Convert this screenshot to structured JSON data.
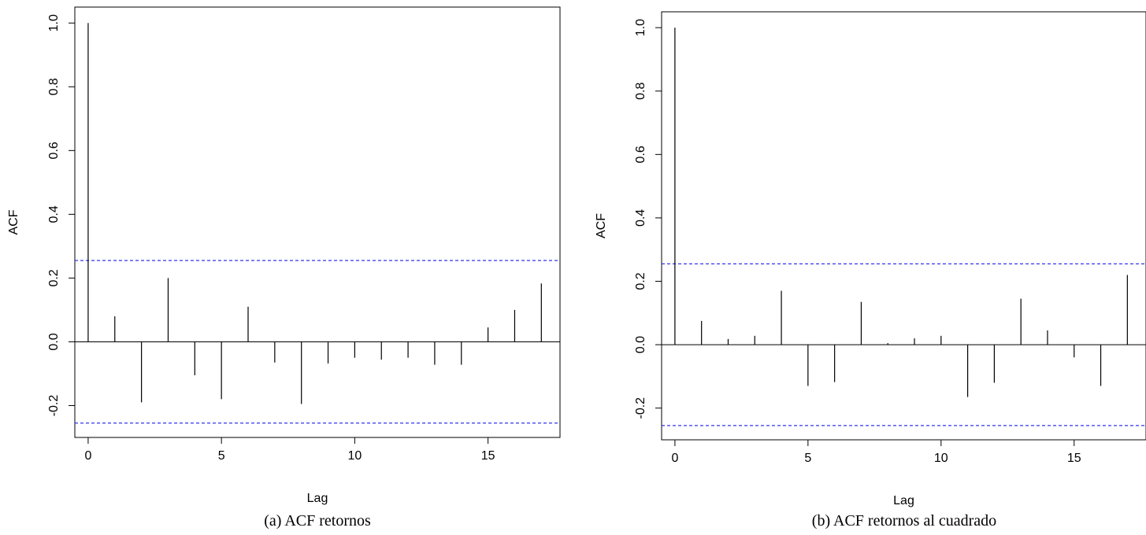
{
  "chart_data": [
    {
      "type": "bar",
      "caption": "(a) ACF retornos",
      "xlabel": "Lag",
      "ylabel": "ACF",
      "x": [
        0,
        1,
        2,
        3,
        4,
        5,
        6,
        7,
        8,
        9,
        10,
        11,
        12,
        13,
        14,
        15,
        16,
        17
      ],
      "values": [
        1.0,
        0.08,
        -0.19,
        0.2,
        -0.105,
        -0.18,
        0.11,
        -0.065,
        -0.195,
        -0.068,
        -0.05,
        -0.056,
        -0.05,
        -0.072,
        -0.072,
        0.045,
        0.1,
        0.183
      ],
      "conf_limits": [
        0.255,
        -0.255
      ],
      "conf_color": "#3333ee",
      "xlim": [
        -0.5,
        17.7
      ],
      "ylim": [
        -0.3,
        1.05
      ],
      "xticks": [
        0,
        5,
        10,
        15
      ],
      "xtick_labels": [
        "0",
        "5",
        "10",
        "15"
      ],
      "yticks": [
        -0.2,
        0.0,
        0.2,
        0.4,
        0.6,
        0.8,
        1.0
      ],
      "ytick_labels": [
        "-0.2",
        "0.0",
        "0.2",
        "0.4",
        "0.6",
        "0.8",
        "1.0"
      ],
      "grid": false
    },
    {
      "type": "bar",
      "caption": "(b) ACF retornos al cuadrado",
      "xlabel": "Lag",
      "ylabel": "ACF",
      "x": [
        0,
        1,
        2,
        3,
        4,
        5,
        6,
        7,
        8,
        9,
        10,
        11,
        12,
        13,
        14,
        15,
        16,
        17
      ],
      "values": [
        1.0,
        0.075,
        0.018,
        0.028,
        0.17,
        -0.13,
        -0.118,
        0.135,
        0.005,
        0.02,
        0.028,
        -0.165,
        -0.12,
        0.145,
        0.045,
        -0.04,
        -0.13,
        0.22
      ],
      "conf_limits": [
        0.255,
        -0.255
      ],
      "conf_color": "#3333ee",
      "xlim": [
        -0.5,
        17.7
      ],
      "ylim": [
        -0.3,
        1.05
      ],
      "xticks": [
        0,
        5,
        10,
        15
      ],
      "xtick_labels": [
        "0",
        "5",
        "10",
        "15"
      ],
      "yticks": [
        -0.2,
        0.0,
        0.2,
        0.4,
        0.6,
        0.8,
        1.0
      ],
      "ytick_labels": [
        "-0.2",
        "0.0",
        "0.2",
        "0.4",
        "0.6",
        "0.8",
        "1.0"
      ],
      "grid": false
    }
  ]
}
